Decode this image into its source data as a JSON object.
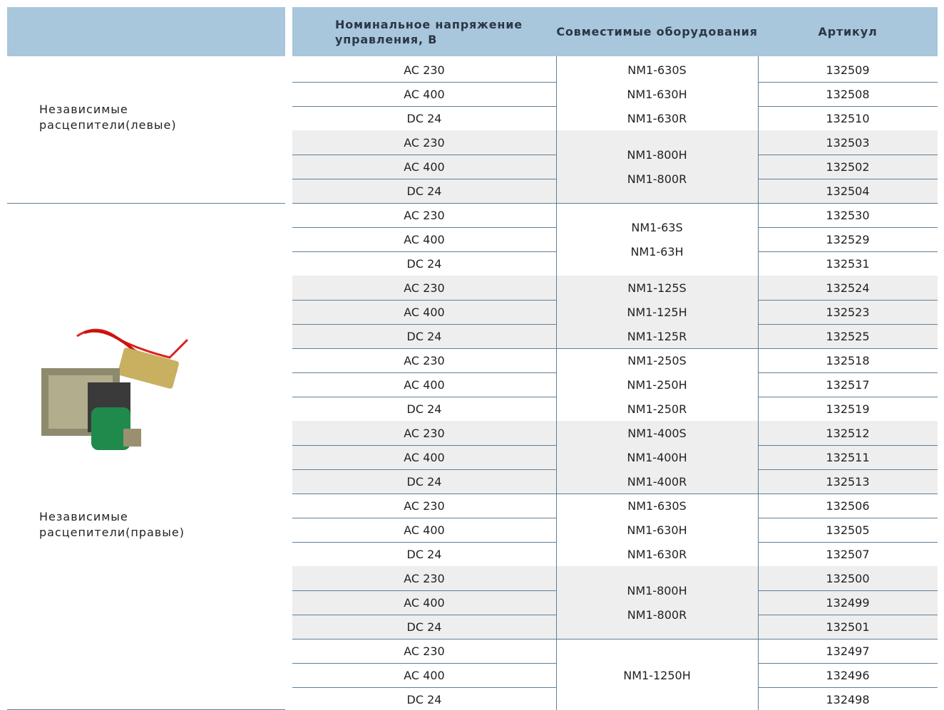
{
  "header": {
    "columns": [
      "Номинальное напряжение управления, В",
      "Совместимые оборудования",
      "Артикул"
    ]
  },
  "groups": [
    {
      "label": "Независимые расцепители(левые)",
      "blocks": [
        {
          "equipment": [
            "NM1-630S",
            "NM1-630H",
            "NM1-630R"
          ],
          "rows": [
            {
              "voltage": "AC 230",
              "article": "132509"
            },
            {
              "voltage": "AC 400",
              "article": "132508"
            },
            {
              "voltage": "DC 24",
              "article": "132510"
            }
          ]
        },
        {
          "equipment": [
            "NM1-800H",
            "NM1-800R"
          ],
          "rows": [
            {
              "voltage": "AC 230",
              "article": "132503"
            },
            {
              "voltage": "AC 400",
              "article": "132502"
            },
            {
              "voltage": "DC 24",
              "article": "132504"
            }
          ]
        }
      ]
    },
    {
      "label": "Независимые расцепители(правые)",
      "blocks": [
        {
          "equipment": [
            "NM1-63S",
            "NM1-63H"
          ],
          "rows": [
            {
              "voltage": "AC 230",
              "article": "132530"
            },
            {
              "voltage": "AC 400",
              "article": "132529"
            },
            {
              "voltage": "DC 24",
              "article": "132531"
            }
          ]
        },
        {
          "equipment": [
            "NM1-125S",
            "NM1-125H",
            "NM1-125R"
          ],
          "rows": [
            {
              "voltage": "AC 230",
              "article": "132524"
            },
            {
              "voltage": "AC 400",
              "article": "132523"
            },
            {
              "voltage": "DC 24",
              "article": "132525"
            }
          ]
        },
        {
          "equipment": [
            "NM1-250S",
            "NM1-250H",
            "NM1-250R"
          ],
          "rows": [
            {
              "voltage": "AC 230",
              "article": "132518"
            },
            {
              "voltage": "AC 400",
              "article": "132517"
            },
            {
              "voltage": "DC 24",
              "article": "132519"
            }
          ]
        },
        {
          "equipment": [
            "NM1-400S",
            "NM1-400H",
            "NM1-400R"
          ],
          "rows": [
            {
              "voltage": "AC 230",
              "article": "132512"
            },
            {
              "voltage": "AC 400",
              "article": "132511"
            },
            {
              "voltage": "DC 24",
              "article": "132513"
            }
          ]
        },
        {
          "equipment": [
            "NM1-630S",
            "NM1-630H",
            "NM1-630R"
          ],
          "rows": [
            {
              "voltage": "AC 230",
              "article": "132506"
            },
            {
              "voltage": "AC 400",
              "article": "132505"
            },
            {
              "voltage": "DC 24",
              "article": "132507"
            }
          ]
        },
        {
          "equipment": [
            "NM1-800H",
            "NM1-800R"
          ],
          "rows": [
            {
              "voltage": "AC 230",
              "article": "132500"
            },
            {
              "voltage": "AC 400",
              "article": "132499"
            },
            {
              "voltage": "DC 24",
              "article": "132501"
            }
          ]
        },
        {
          "equipment": [
            "NM1-1250H"
          ],
          "rows": [
            {
              "voltage": "AC 230",
              "article": "132497"
            },
            {
              "voltage": "AC 400",
              "article": "132496"
            },
            {
              "voltage": "DC 24",
              "article": "132498"
            }
          ]
        }
      ]
    }
  ]
}
